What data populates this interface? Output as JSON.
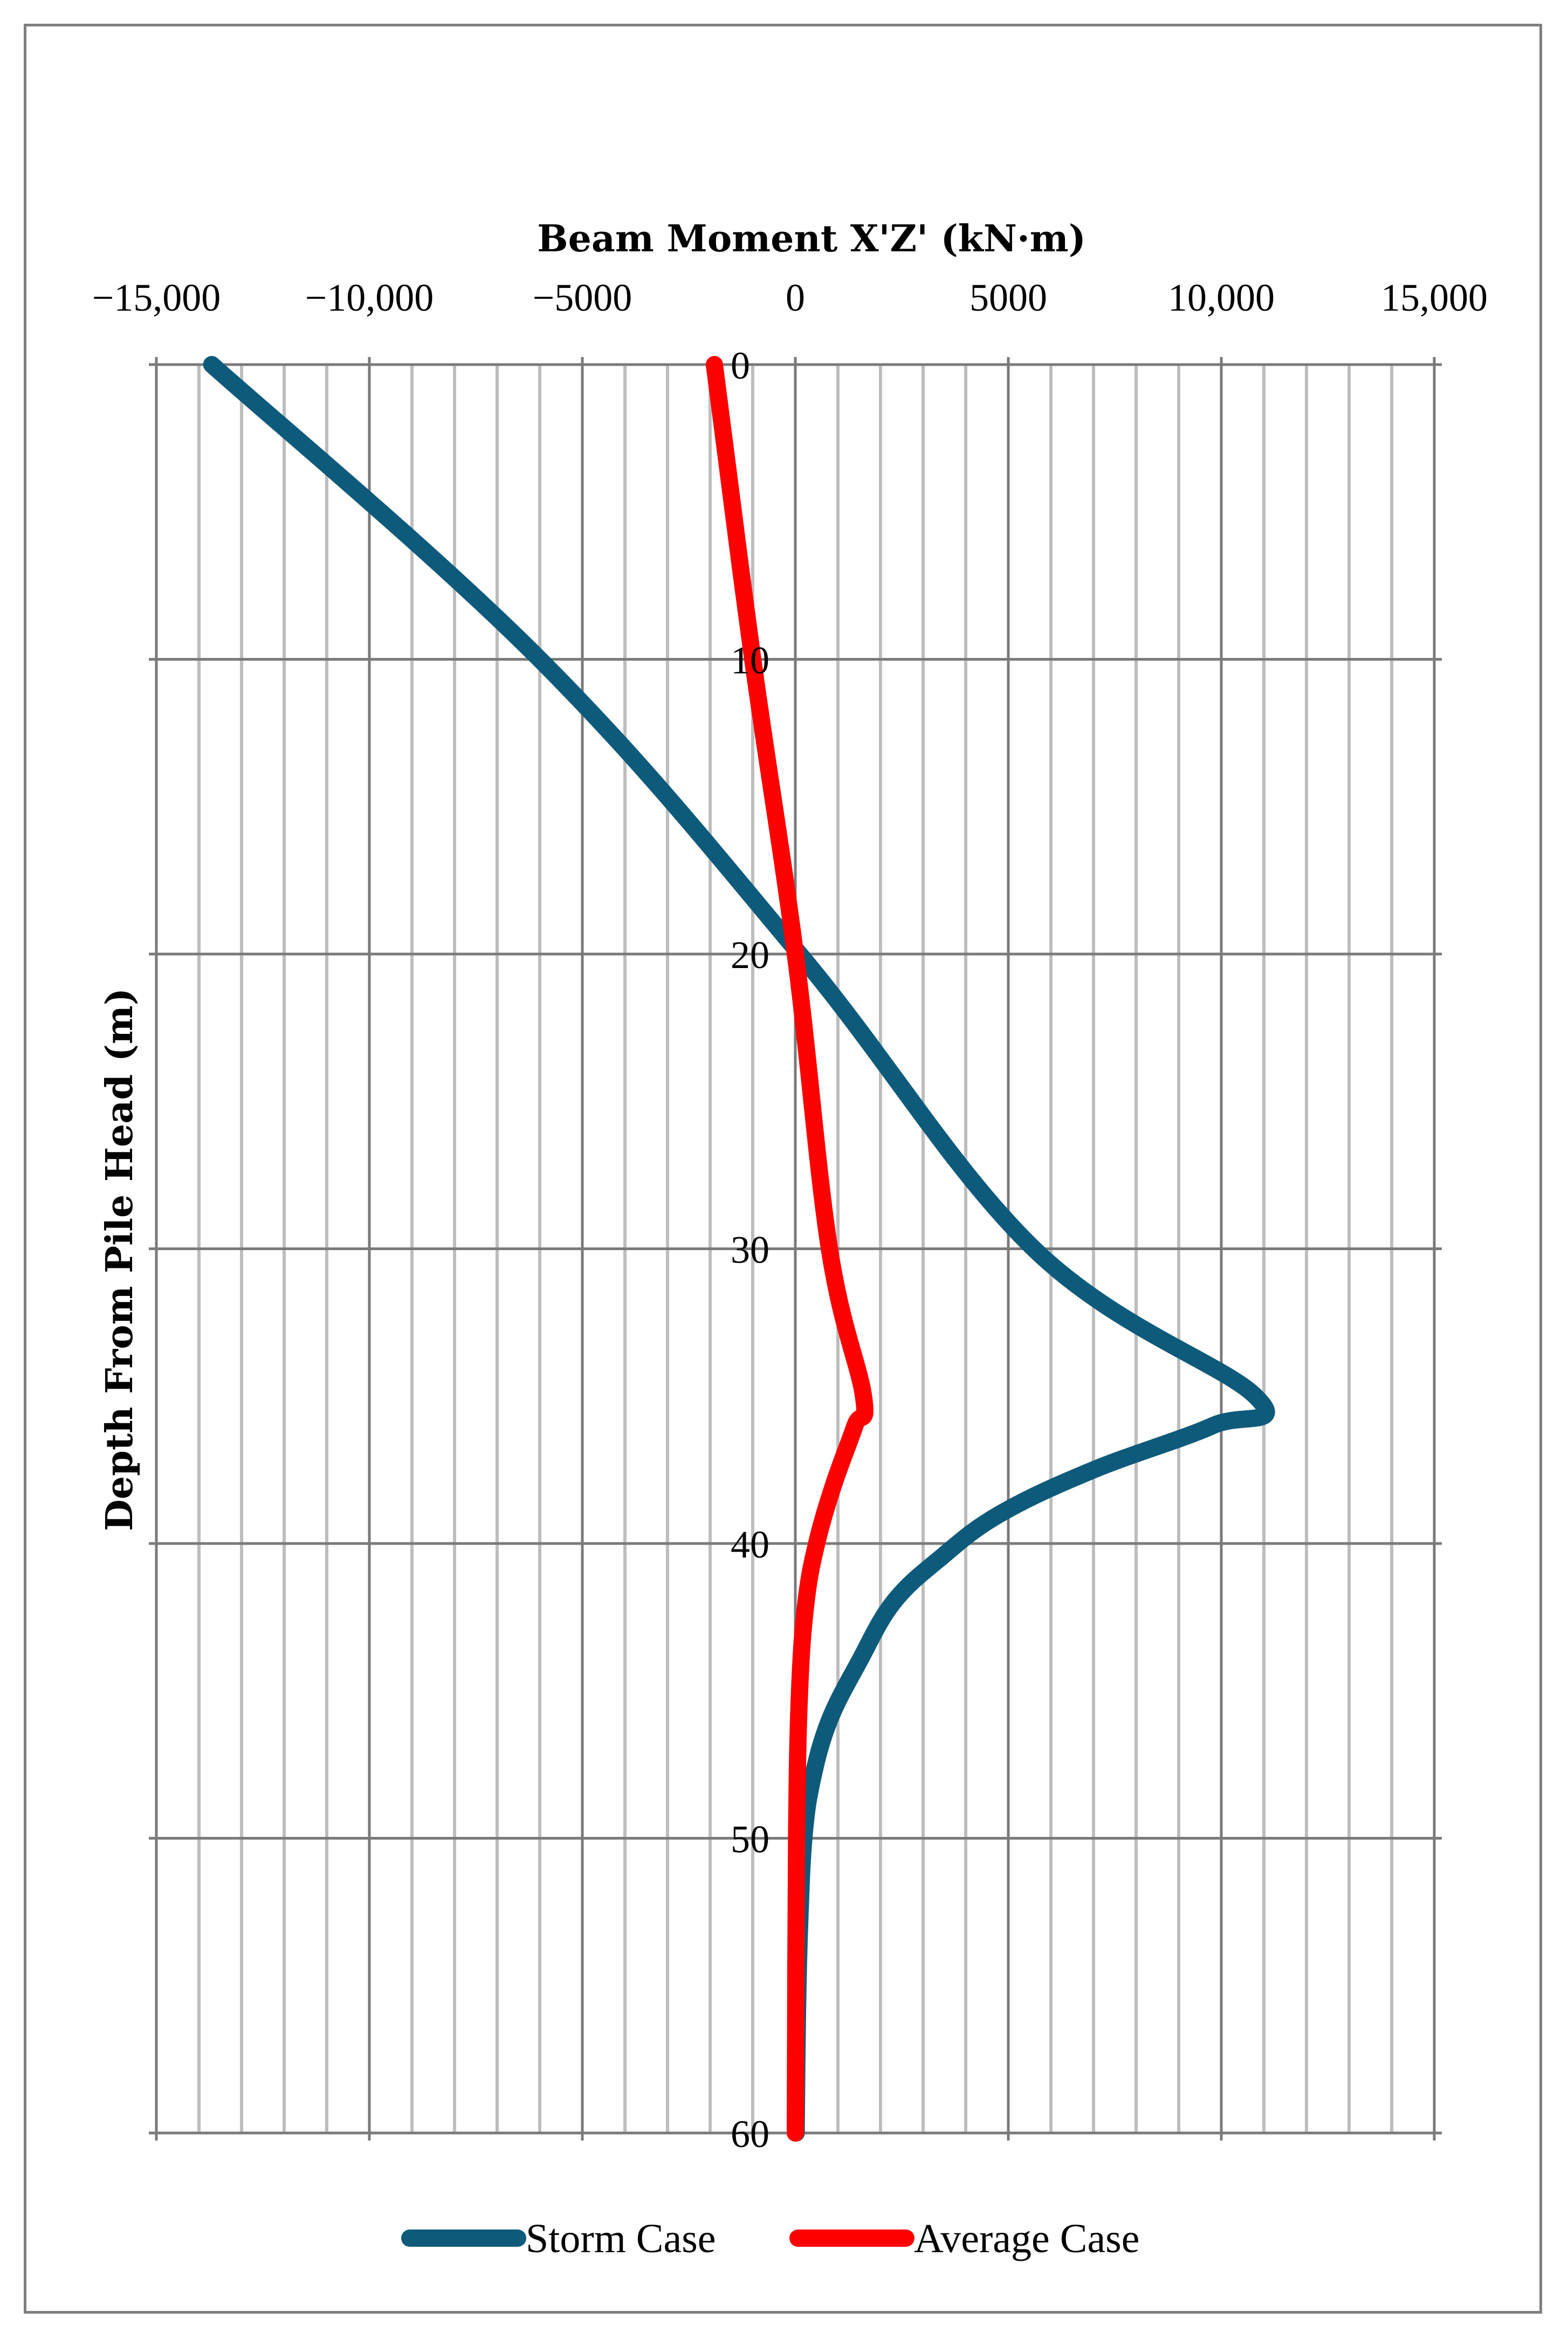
{
  "chart_data": {
    "type": "line",
    "title": "",
    "xlabel": "Beam Moment X'Z' (kN·m)",
    "ylabel": "Depth From Pile Head (m)",
    "xlim": [
      -15000,
      15000
    ],
    "ylim": [
      0,
      60
    ],
    "y_inverted": true,
    "x_axis_position": "top",
    "x_ticks": [
      -15000,
      -10000,
      -5000,
      0,
      5000,
      10000,
      15000
    ],
    "x_tick_labels": [
      "−15,000",
      "−10,000",
      "−5000",
      "0",
      "5000",
      "10,000",
      "15,000"
    ],
    "y_ticks": [
      0,
      10,
      20,
      30,
      40,
      50,
      60
    ],
    "y_tick_labels": [
      "0",
      "10",
      "20",
      "30",
      "40",
      "50",
      "60"
    ],
    "grid": true,
    "legend_position": "bottom",
    "series": [
      {
        "name": "Storm Case",
        "color": "#0e5a7a",
        "points": [
          {
            "x": -13700,
            "y": 0
          },
          {
            "x": -6000,
            "y": 10
          },
          {
            "x": 100,
            "y": 20
          },
          {
            "x": 5600,
            "y": 30
          },
          {
            "x": 10800,
            "y": 35
          },
          {
            "x": 9800,
            "y": 36
          },
          {
            "x": 7000,
            "y": 37.5
          },
          {
            "x": 4800,
            "y": 39
          },
          {
            "x": 3400,
            "y": 40.5
          },
          {
            "x": 2300,
            "y": 42
          },
          {
            "x": 1500,
            "y": 44
          },
          {
            "x": 800,
            "y": 46
          },
          {
            "x": 400,
            "y": 48
          },
          {
            "x": 200,
            "y": 50
          },
          {
            "x": 100,
            "y": 53
          },
          {
            "x": 50,
            "y": 56
          },
          {
            "x": 20,
            "y": 60
          }
        ]
      },
      {
        "name": "Average Case",
        "color": "#ff0000",
        "points": [
          {
            "x": -1900,
            "y": 0
          },
          {
            "x": -1000,
            "y": 10
          },
          {
            "x": 0,
            "y": 20
          },
          {
            "x": 800,
            "y": 30
          },
          {
            "x": 1600,
            "y": 35
          },
          {
            "x": 1400,
            "y": 36
          },
          {
            "x": 900,
            "y": 38
          },
          {
            "x": 500,
            "y": 40
          },
          {
            "x": 250,
            "y": 42
          },
          {
            "x": 100,
            "y": 45
          },
          {
            "x": 30,
            "y": 50
          },
          {
            "x": 0,
            "y": 60
          }
        ]
      }
    ]
  }
}
